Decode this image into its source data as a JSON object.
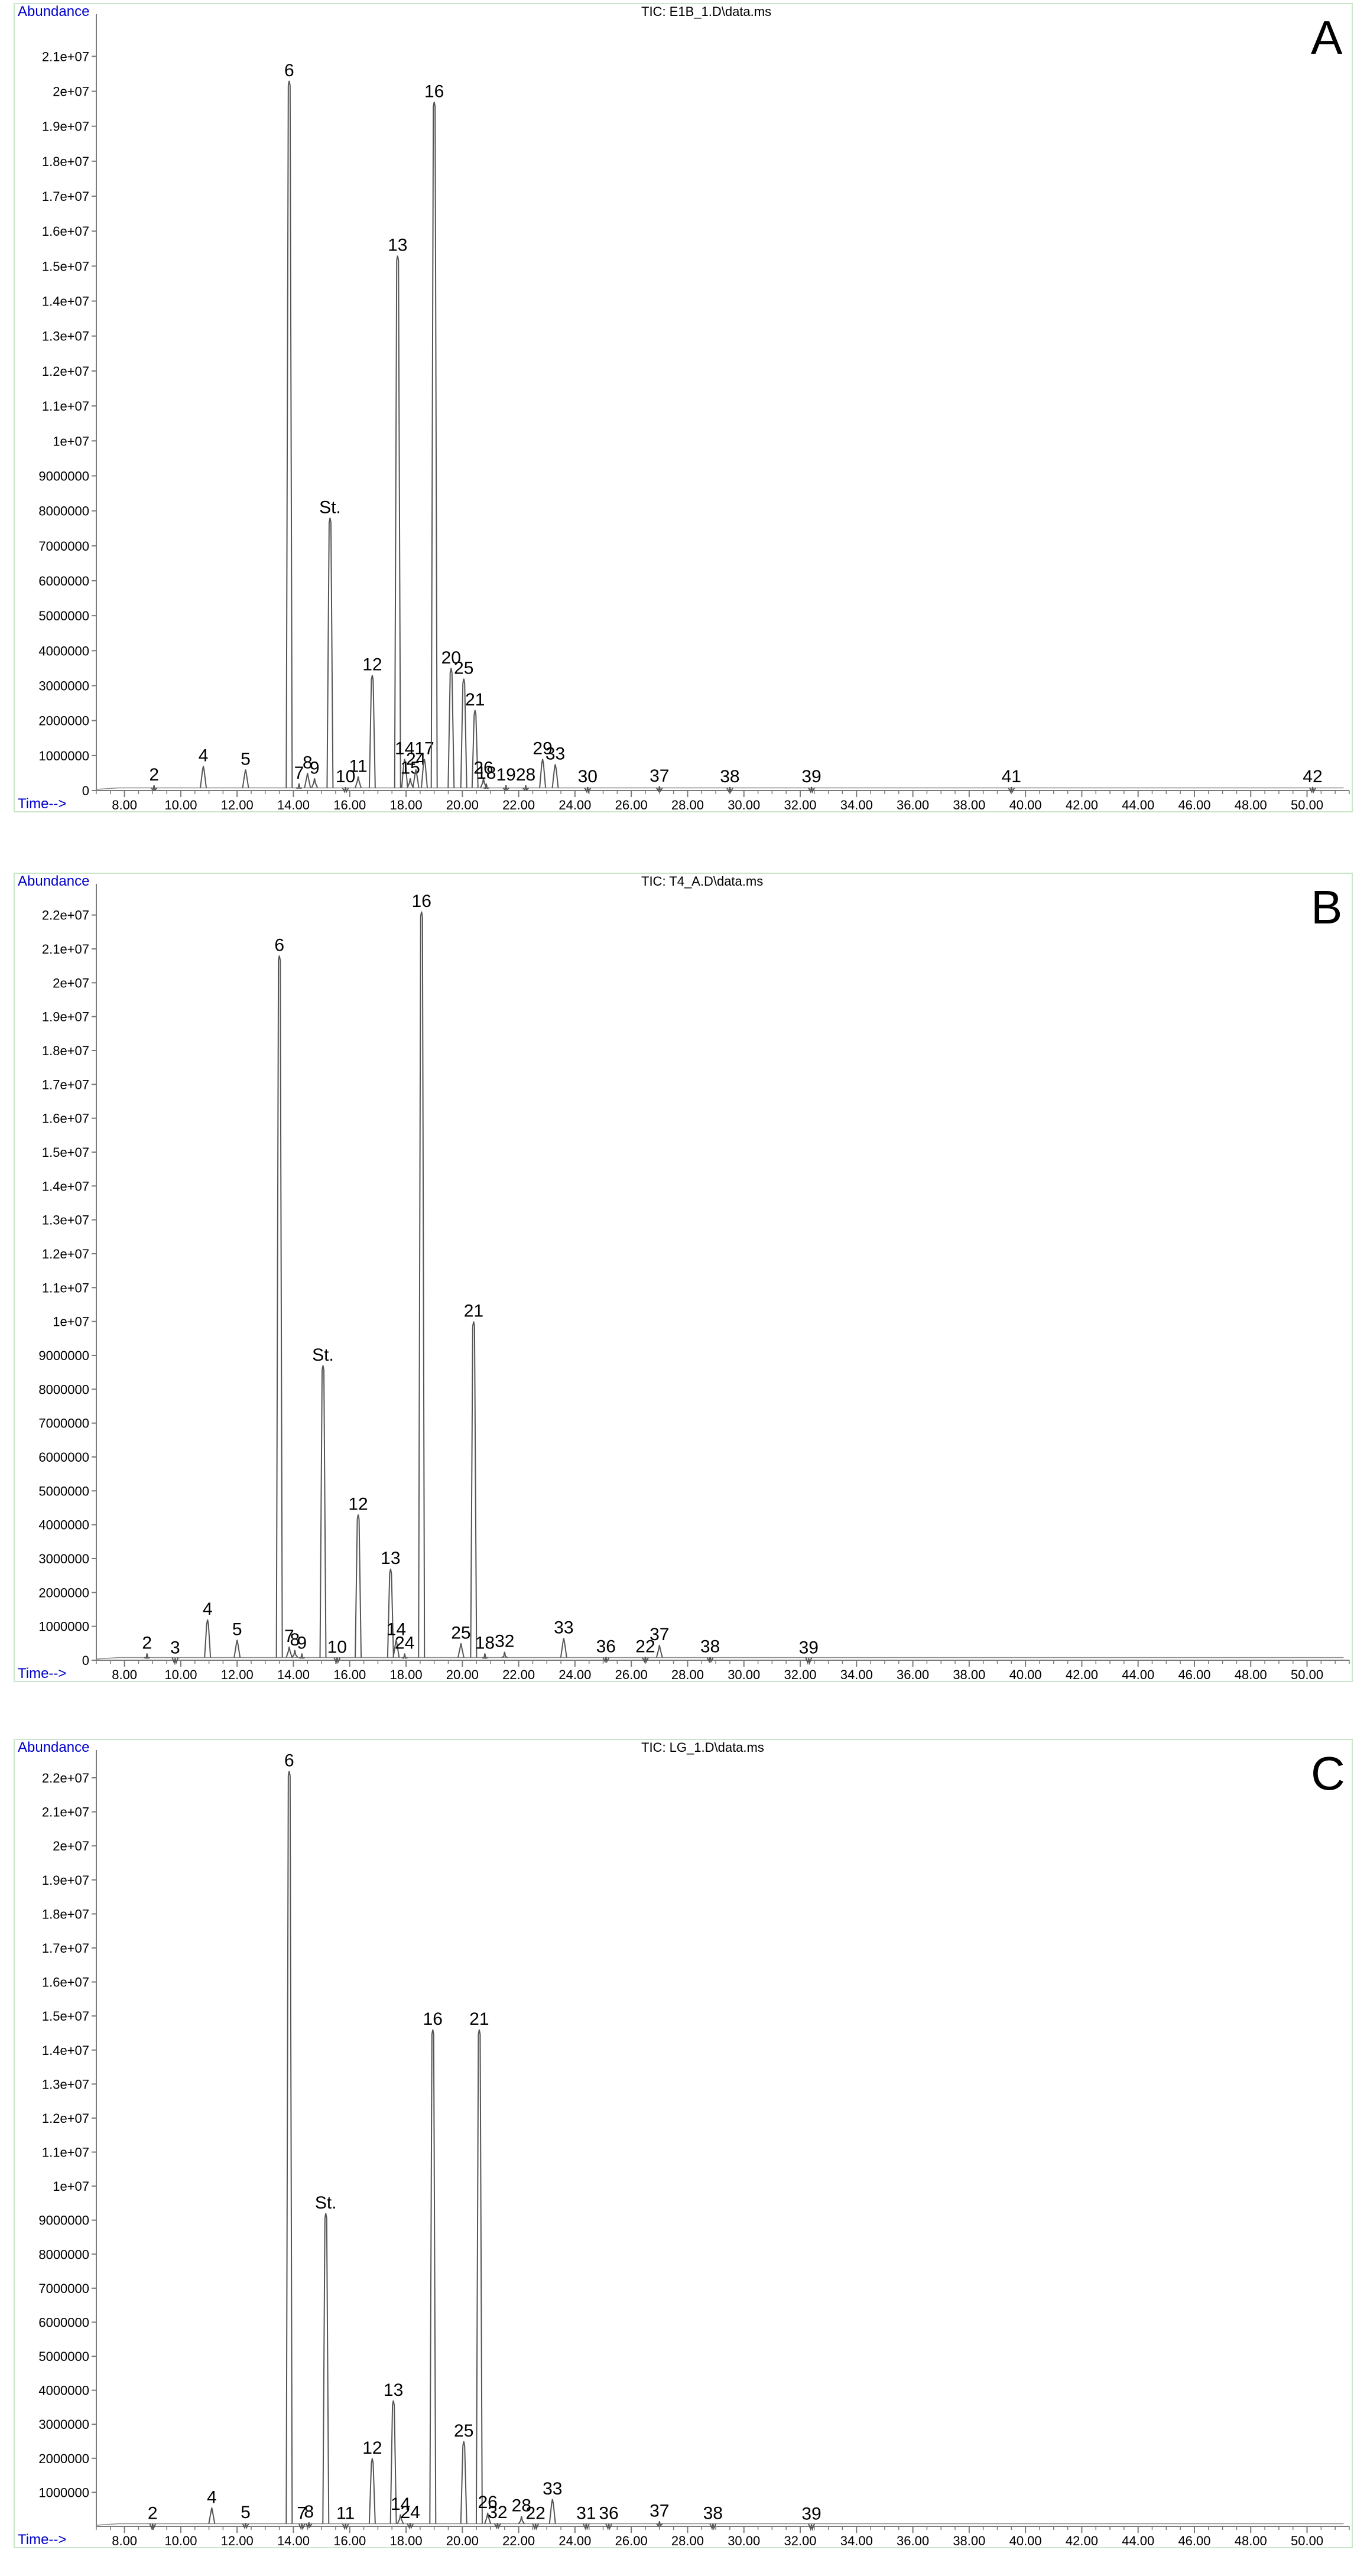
{
  "chart_data": [
    {
      "type": "line",
      "panel_letter": "A",
      "title": "TIC: E1B_1.D\\data.ms",
      "ylabel": "Abundance",
      "xlabel": "Time-->",
      "xlim": [
        7.0,
        51.5
      ],
      "ylim": [
        0,
        21800000
      ],
      "x_ticks": [
        8,
        10,
        12,
        14,
        16,
        18,
        20,
        22,
        24,
        26,
        28,
        30,
        32,
        34,
        36,
        38,
        40,
        42,
        44,
        46,
        48,
        50
      ],
      "x_tick_labels": [
        "8.00",
        "10.00",
        "12.00",
        "14.00",
        "16.00",
        "18.00",
        "20.00",
        "22.00",
        "24.00",
        "26.00",
        "28.00",
        "30.00",
        "32.00",
        "34.00",
        "36.00",
        "38.00",
        "40.00",
        "42.00",
        "44.00",
        "46.00",
        "48.00",
        "50.00"
      ],
      "y_ticks": [
        0,
        1000000,
        2000000,
        3000000,
        4000000,
        5000000,
        6000000,
        7000000,
        8000000,
        9000000,
        10000000,
        11000000,
        12000000,
        13000000,
        14000000,
        15000000,
        16000000,
        17000000,
        18000000,
        19000000,
        20000000,
        21000000
      ],
      "y_tick_labels": [
        "0",
        "1000000",
        "2000000",
        "3000000",
        "4000000",
        "5000000",
        "6000000",
        "7000000",
        "8000000",
        "9000000",
        "1e+07",
        "1.1e+07",
        "1.2e+07",
        "1.3e+07",
        "1.4e+07",
        "1.5e+07",
        "1.6e+07",
        "1.7e+07",
        "1.8e+07",
        "1.9e+07",
        "2e+07",
        "2.1e+07"
      ],
      "peaks": [
        {
          "label": "2",
          "x": 9.05,
          "y": 150000
        },
        {
          "label": "4",
          "x": 10.8,
          "y": 700000
        },
        {
          "label": "5",
          "x": 12.3,
          "y": 600000
        },
        {
          "label": "6",
          "x": 13.85,
          "y": 20300000
        },
        {
          "label": "7",
          "x": 14.2,
          "y": 200000
        },
        {
          "label": "8",
          "x": 14.5,
          "y": 500000
        },
        {
          "label": "9",
          "x": 14.75,
          "y": 350000
        },
        {
          "label": "St.",
          "x": 15.3,
          "y": 7800000
        },
        {
          "label": "10",
          "x": 15.85,
          "y": 100000
        },
        {
          "label": "11",
          "x": 16.3,
          "y": 400000
        },
        {
          "label": "12",
          "x": 16.8,
          "y": 3300000
        },
        {
          "label": "13",
          "x": 17.7,
          "y": 15300000
        },
        {
          "label": "14",
          "x": 17.95,
          "y": 900000
        },
        {
          "label": "15",
          "x": 18.15,
          "y": 350000
        },
        {
          "label": "24",
          "x": 18.35,
          "y": 600000
        },
        {
          "label": "17",
          "x": 18.65,
          "y": 900000
        },
        {
          "label": "16",
          "x": 19.0,
          "y": 19700000
        },
        {
          "label": "20",
          "x": 19.6,
          "y": 3500000
        },
        {
          "label": "25",
          "x": 20.05,
          "y": 3200000
        },
        {
          "label": "21",
          "x": 20.45,
          "y": 2300000
        },
        {
          "label": "26",
          "x": 20.75,
          "y": 350000
        },
        {
          "label": "18",
          "x": 20.85,
          "y": 200000
        },
        {
          "label": "19",
          "x": 21.55,
          "y": 150000
        },
        {
          "label": "28",
          "x": 22.25,
          "y": 150000
        },
        {
          "label": "29",
          "x": 22.85,
          "y": 900000
        },
        {
          "label": "33",
          "x": 23.3,
          "y": 750000
        },
        {
          "label": "30",
          "x": 24.45,
          "y": 100000
        },
        {
          "label": "37",
          "x": 27.0,
          "y": 120000
        },
        {
          "label": "38",
          "x": 29.5,
          "y": 100000
        },
        {
          "label": "39",
          "x": 32.4,
          "y": 100000
        },
        {
          "label": "41",
          "x": 39.5,
          "y": 100000
        },
        {
          "label": "42",
          "x": 50.2,
          "y": 100000
        }
      ]
    },
    {
      "type": "line",
      "panel_letter": "B",
      "title": "TIC: T4_A.D\\data.ms",
      "ylabel": "Abundance",
      "xlabel": "Time-->",
      "xlim": [
        7.0,
        51.5
      ],
      "ylim": [
        0,
        22500000
      ],
      "x_ticks": [
        8,
        10,
        12,
        14,
        16,
        18,
        20,
        22,
        24,
        26,
        28,
        30,
        32,
        34,
        36,
        38,
        40,
        42,
        44,
        46,
        48,
        50
      ],
      "x_tick_labels": [
        "8.00",
        "10.00",
        "12.00",
        "14.00",
        "16.00",
        "18.00",
        "20.00",
        "22.00",
        "24.00",
        "26.00",
        "28.00",
        "30.00",
        "32.00",
        "34.00",
        "36.00",
        "38.00",
        "40.00",
        "42.00",
        "44.00",
        "46.00",
        "48.00",
        "50.00"
      ],
      "y_ticks": [
        0,
        1000000,
        2000000,
        3000000,
        4000000,
        5000000,
        6000000,
        7000000,
        8000000,
        9000000,
        10000000,
        11000000,
        12000000,
        13000000,
        14000000,
        15000000,
        16000000,
        17000000,
        18000000,
        19000000,
        20000000,
        21000000,
        22000000
      ],
      "y_tick_labels": [
        "0",
        "1000000",
        "2000000",
        "3000000",
        "4000000",
        "5000000",
        "6000000",
        "7000000",
        "8000000",
        "9000000",
        "1e+07",
        "1.1e+07",
        "1.2e+07",
        "1.3e+07",
        "1.4e+07",
        "1.5e+07",
        "1.6e+07",
        "1.7e+07",
        "1.8e+07",
        "1.9e+07",
        "2e+07",
        "2.1e+07",
        "2.2e+07"
      ],
      "peaks": [
        {
          "label": "2",
          "x": 8.8,
          "y": 200000
        },
        {
          "label": "3",
          "x": 9.8,
          "y": 60000
        },
        {
          "label": "4",
          "x": 10.95,
          "y": 1200000
        },
        {
          "label": "5",
          "x": 12.0,
          "y": 600000
        },
        {
          "label": "6",
          "x": 13.5,
          "y": 20800000
        },
        {
          "label": "7",
          "x": 13.85,
          "y": 400000
        },
        {
          "label": "8",
          "x": 14.05,
          "y": 300000
        },
        {
          "label": "9",
          "x": 14.3,
          "y": 200000
        },
        {
          "label": "St.",
          "x": 15.05,
          "y": 8700000
        },
        {
          "label": "10",
          "x": 15.55,
          "y": 80000
        },
        {
          "label": "12",
          "x": 16.3,
          "y": 4300000
        },
        {
          "label": "13",
          "x": 17.45,
          "y": 2700000
        },
        {
          "label": "14",
          "x": 17.65,
          "y": 600000
        },
        {
          "label": "24",
          "x": 17.95,
          "y": 200000
        },
        {
          "label": "16",
          "x": 18.55,
          "y": 22100000
        },
        {
          "label": "25",
          "x": 19.95,
          "y": 500000
        },
        {
          "label": "21",
          "x": 20.4,
          "y": 10000000
        },
        {
          "label": "18",
          "x": 20.8,
          "y": 200000
        },
        {
          "label": "32",
          "x": 21.5,
          "y": 250000
        },
        {
          "label": "33",
          "x": 23.6,
          "y": 650000
        },
        {
          "label": "36",
          "x": 25.1,
          "y": 100000
        },
        {
          "label": "22",
          "x": 26.5,
          "y": 100000
        },
        {
          "label": "37",
          "x": 27.0,
          "y": 450000
        },
        {
          "label": "38",
          "x": 28.8,
          "y": 100000
        },
        {
          "label": "39",
          "x": 32.3,
          "y": 60000
        }
      ]
    },
    {
      "type": "line",
      "panel_letter": "C",
      "title": "TIC: LG_1.D\\data.ms",
      "ylabel": "Abundance",
      "xlabel": "Time-->",
      "xlim": [
        7.0,
        51.5
      ],
      "ylim": [
        0,
        22400000
      ],
      "x_ticks": [
        8,
        10,
        12,
        14,
        16,
        18,
        20,
        22,
        24,
        26,
        28,
        30,
        32,
        34,
        36,
        38,
        40,
        42,
        44,
        46,
        48,
        50
      ],
      "x_tick_labels": [
        "8.00",
        "10.00",
        "12.00",
        "14.00",
        "16.00",
        "18.00",
        "20.00",
        "22.00",
        "24.00",
        "26.00",
        "28.00",
        "30.00",
        "32.00",
        "34.00",
        "36.00",
        "38.00",
        "40.00",
        "42.00",
        "44.00",
        "46.00",
        "48.00",
        "50.00"
      ],
      "y_ticks": [
        1000000,
        2000000,
        3000000,
        4000000,
        5000000,
        6000000,
        7000000,
        8000000,
        9000000,
        10000000,
        11000000,
        12000000,
        13000000,
        14000000,
        15000000,
        16000000,
        17000000,
        18000000,
        19000000,
        20000000,
        21000000,
        22000000
      ],
      "y_tick_labels": [
        "1000000",
        "2000000",
        "3000000",
        "4000000",
        "5000000",
        "6000000",
        "7000000",
        "8000000",
        "9000000",
        "1e+07",
        "1.1e+07",
        "1.2e+07",
        "1.3e+07",
        "1.4e+07",
        "1.5e+07",
        "1.6e+07",
        "1.7e+07",
        "1.8e+07",
        "1.9e+07",
        "2e+07",
        "2.1e+07",
        "2.2e+07"
      ],
      "peaks": [
        {
          "label": "2",
          "x": 9.0,
          "y": 80000
        },
        {
          "label": "4",
          "x": 11.1,
          "y": 550000
        },
        {
          "label": "5",
          "x": 12.3,
          "y": 100000
        },
        {
          "label": "6",
          "x": 13.85,
          "y": 22200000
        },
        {
          "label": "7",
          "x": 14.3,
          "y": 80000
        },
        {
          "label": "8",
          "x": 14.55,
          "y": 120000
        },
        {
          "label": "St.",
          "x": 15.15,
          "y": 9200000
        },
        {
          "label": "11",
          "x": 15.85,
          "y": 80000
        },
        {
          "label": "12",
          "x": 16.8,
          "y": 2000000
        },
        {
          "label": "13",
          "x": 17.55,
          "y": 3700000
        },
        {
          "label": "14",
          "x": 17.8,
          "y": 350000
        },
        {
          "label": "24",
          "x": 18.15,
          "y": 100000
        },
        {
          "label": "16",
          "x": 18.95,
          "y": 14600000
        },
        {
          "label": "25",
          "x": 20.05,
          "y": 2500000
        },
        {
          "label": "21",
          "x": 20.6,
          "y": 14600000
        },
        {
          "label": "26",
          "x": 20.9,
          "y": 400000
        },
        {
          "label": "32",
          "x": 21.25,
          "y": 100000
        },
        {
          "label": "28",
          "x": 22.1,
          "y": 300000
        },
        {
          "label": "22",
          "x": 22.6,
          "y": 80000
        },
        {
          "label": "33",
          "x": 23.2,
          "y": 800000
        },
        {
          "label": "31",
          "x": 24.4,
          "y": 80000
        },
        {
          "label": "36",
          "x": 25.2,
          "y": 80000
        },
        {
          "label": "37",
          "x": 27.0,
          "y": 150000
        },
        {
          "label": "38",
          "x": 28.9,
          "y": 80000
        },
        {
          "label": "39",
          "x": 32.4,
          "y": 60000
        }
      ]
    }
  ]
}
